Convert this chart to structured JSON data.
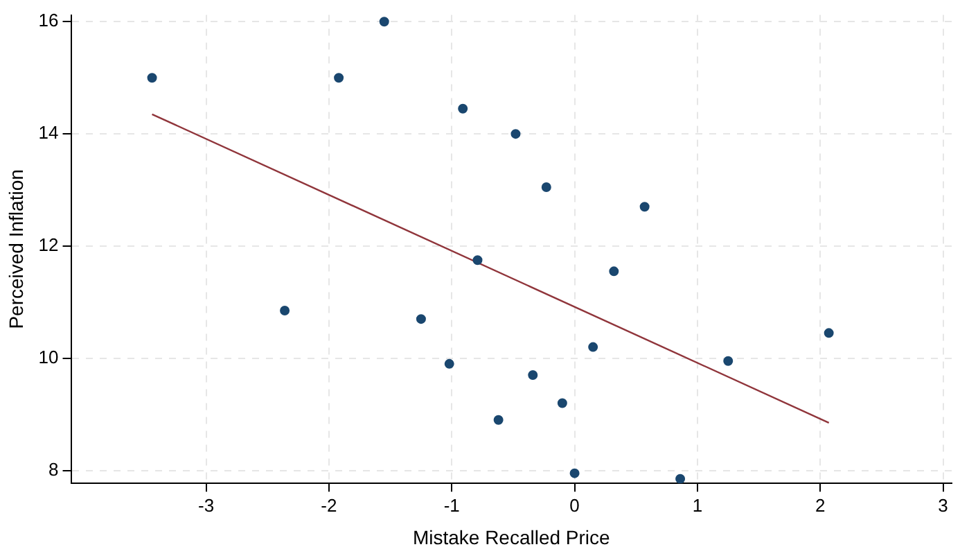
{
  "chart_data": {
    "type": "scatter",
    "xlabel": "Mistake Recalled Price",
    "ylabel": "Perceived Inflation",
    "xlim": [
      -4.1,
      3.07
    ],
    "xticks": [
      -3,
      -2,
      -1,
      0,
      1,
      2,
      3
    ],
    "ylim": [
      7.77,
      16.12
    ],
    "yticks": [
      8,
      10,
      12,
      14,
      16
    ],
    "grid": true,
    "marker": "circle",
    "series": [
      {
        "type": "scatter",
        "color": "#1a476f",
        "x": [
          -3.44,
          -1.92,
          -1.55,
          -0.91,
          -0.48,
          -0.23,
          0.57,
          -0.79,
          0.32,
          -2.36,
          -1.25,
          0.15,
          2.07,
          1.25,
          -1.02,
          -0.34,
          -0.62,
          -0.1,
          0.0,
          0.86
        ],
        "values": [
          15.0,
          15.0,
          16.0,
          14.45,
          14.0,
          13.05,
          12.7,
          11.75,
          11.55,
          10.85,
          10.7,
          10.2,
          10.45,
          9.95,
          9.9,
          9.7,
          8.9,
          9.2,
          7.95,
          7.85
        ]
      },
      {
        "type": "line",
        "color": "#90353b",
        "x": [
          -3.44,
          2.07
        ],
        "values": [
          14.35,
          8.85
        ],
        "marker": "none",
        "line_style": "solid"
      }
    ]
  }
}
